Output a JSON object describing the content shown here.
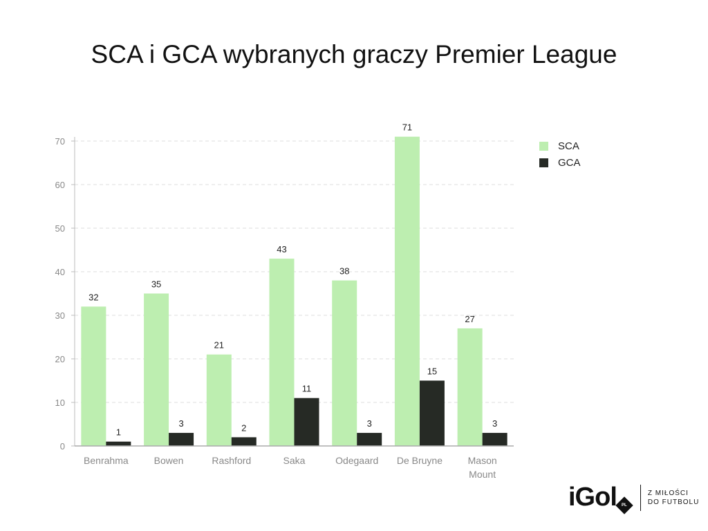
{
  "chart_data": {
    "type": "bar",
    "title": "SCA i GCA wybranych graczy Premier League",
    "categories": [
      "Benrahma",
      "Bowen",
      "Rashford",
      "Saka",
      "Odegaard",
      "De Bruyne",
      "Mason Mount"
    ],
    "series": [
      {
        "name": "SCA",
        "values": [
          32,
          35,
          21,
          43,
          38,
          71,
          27
        ],
        "color": "#bdeeb0"
      },
      {
        "name": "GCA",
        "values": [
          1,
          3,
          2,
          11,
          3,
          15,
          3
        ],
        "color": "#262a25"
      }
    ],
    "ylim": [
      0,
      70
    ],
    "yticks": [
      0,
      10,
      20,
      30,
      40,
      50,
      60,
      70
    ],
    "xlabel": "",
    "ylabel": "",
    "grid": true,
    "legend_position": "top-right"
  },
  "branding": {
    "logo_text": "iGol",
    "logo_badge": "PL",
    "tagline_line1": "Z MIŁOŚCI",
    "tagline_line2": "DO FUTBOLU"
  }
}
